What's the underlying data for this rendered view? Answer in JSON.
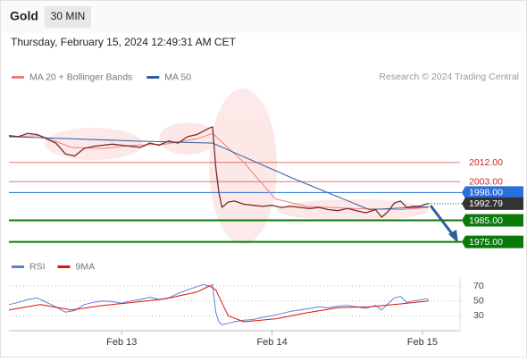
{
  "chart_data": {
    "type": "line",
    "title": "Gold",
    "timeframe": "30 MIN",
    "subtitle": "Thursday, February 15, 2024 12:49:31 AM CET",
    "source": "Research © 2024 Trading Central",
    "xlim": [
      0,
      144
    ],
    "xticks": [
      {
        "value": 36,
        "label": "Feb 13"
      },
      {
        "value": 84,
        "label": "Feb 14"
      },
      {
        "value": 132,
        "label": "Feb 15"
      }
    ],
    "ylim": [
      1969,
      2046
    ],
    "price": {
      "color": "#7a2a2a",
      "x": [
        0,
        3,
        6,
        9,
        12,
        15,
        18,
        21,
        24,
        27,
        30,
        33,
        36,
        39,
        42,
        45,
        48,
        51,
        54,
        57,
        60,
        62,
        64,
        65,
        66,
        67,
        68,
        70,
        72,
        75,
        78,
        81,
        84,
        87,
        90,
        93,
        96,
        99,
        102,
        105,
        108,
        111,
        114,
        117,
        119,
        121,
        123,
        125,
        127,
        129,
        131,
        133,
        134
      ],
      "values": [
        2024.5,
        2024,
        2025.5,
        2025,
        2023,
        2021,
        2016,
        2015,
        2018.5,
        2019.5,
        2020,
        2020.5,
        2020,
        2019.5,
        2019,
        2021,
        2020,
        2022,
        2021,
        2024,
        2025,
        2026.5,
        2028,
        2028.5,
        2010,
        1998,
        1991,
        1993.5,
        1994,
        1992.5,
        1992,
        1991.5,
        1992,
        1991,
        1991.5,
        1991,
        1990.5,
        1991,
        1990,
        1989.5,
        1990.5,
        1989.5,
        1988.5,
        1990,
        1986.5,
        1989,
        1993,
        1994,
        1991,
        1991.5,
        1991.5,
        1992.5,
        1992.79
      ]
    },
    "series": [
      {
        "name": "MA 20 + Bollinger Bands",
        "color": "#f08080",
        "x": [
          0,
          10,
          20,
          30,
          40,
          50,
          60,
          65,
          75,
          85,
          95,
          110,
          125,
          134
        ],
        "values": [
          2024,
          2024.5,
          2019,
          2018.5,
          2020,
          2020.5,
          2023,
          2025.5,
          2012,
          1995,
          1991.5,
          1990.5,
          1990,
          1991
        ]
      },
      {
        "name": "MA 50",
        "color": "#2f5f9e",
        "x": [
          0,
          20,
          40,
          65,
          90,
          115,
          134
        ],
        "values": [
          2024,
          2023,
          2022,
          2021,
          2005,
          1990,
          1991.4
        ]
      }
    ],
    "levels": [
      {
        "value": 2012,
        "label": "2012.00",
        "color": "#cc2222",
        "style": "text"
      },
      {
        "value": 2003,
        "label": "2003.00",
        "color": "#cc2222",
        "style": "text"
      },
      {
        "value": 1998,
        "label": "1998.00",
        "color": "#2a6fdb",
        "style": "box"
      },
      {
        "value": 1985,
        "label": "1985.00",
        "color": "#0b7a0b",
        "style": "box"
      },
      {
        "value": 1975,
        "label": "1975.00",
        "color": "#0b7a0b",
        "style": "box"
      }
    ],
    "last_color": "#333333",
    "rsi": {
      "ylim": [
        10,
        82
      ],
      "yticks": [
        30,
        50,
        70
      ],
      "series": [
        {
          "name": "RSI",
          "color": "#5b7fd6",
          "x": [
            0,
            3,
            6,
            9,
            12,
            15,
            18,
            21,
            24,
            27,
            30,
            33,
            36,
            39,
            42,
            45,
            48,
            51,
            54,
            57,
            60,
            62,
            64,
            65,
            66,
            67,
            68,
            70,
            72,
            75,
            78,
            81,
            84,
            87,
            90,
            93,
            96,
            99,
            102,
            105,
            108,
            111,
            114,
            117,
            119,
            121,
            123,
            125,
            127,
            129,
            131,
            133,
            134
          ],
          "values": [
            45,
            48,
            52,
            54,
            48,
            42,
            35,
            37,
            45,
            48,
            50,
            49,
            47,
            50,
            52,
            55,
            52,
            54,
            60,
            65,
            69,
            72,
            70,
            72,
            35,
            22,
            18,
            20,
            22,
            24,
            25,
            28,
            30,
            33,
            36,
            38,
            40,
            42,
            41,
            43,
            44,
            42,
            40,
            44,
            38,
            46,
            54,
            56,
            48,
            50,
            51,
            53,
            52
          ]
        },
        {
          "name": "9MA",
          "color": "#e01010",
          "x": [
            0,
            10,
            20,
            30,
            40,
            50,
            60,
            64,
            66,
            70,
            75,
            85,
            95,
            105,
            115,
            125,
            134
          ],
          "values": [
            38,
            45,
            38,
            44,
            48,
            53,
            62,
            70,
            65,
            30,
            22,
            26,
            34,
            41,
            42,
            46,
            50
          ]
        }
      ]
    }
  }
}
